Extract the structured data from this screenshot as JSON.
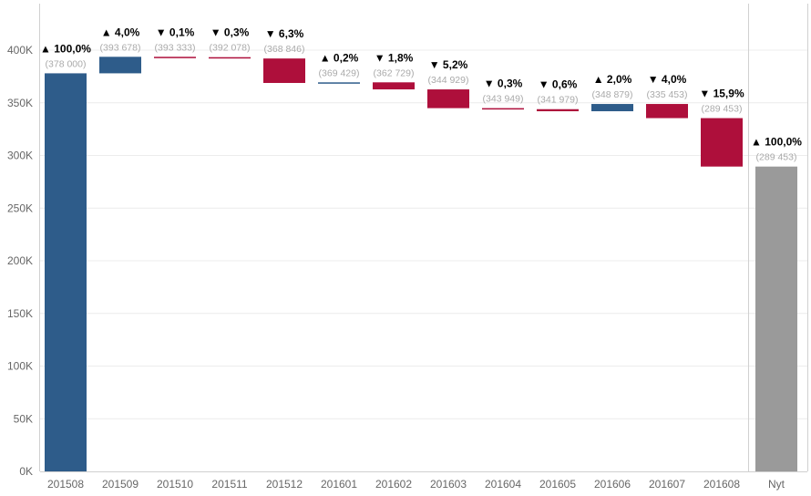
{
  "chart_data": {
    "type": "bar",
    "variant": "waterfall",
    "categories": [
      "201508",
      "201509",
      "201510",
      "201511",
      "201512",
      "201601",
      "201602",
      "201603",
      "201604",
      "201605",
      "201606",
      "201607",
      "201608",
      "Nyt"
    ],
    "bars": [
      {
        "category": "201508",
        "start": 0,
        "end": 378000,
        "kind": "total",
        "pct_label": "▲ 100,0%",
        "value_label": "(378 000)"
      },
      {
        "category": "201509",
        "start": 378000,
        "end": 393678,
        "kind": "increase",
        "pct_label": "▲ 4,0%",
        "value_label": "(393 678)"
      },
      {
        "category": "201510",
        "start": 393678,
        "end": 393333,
        "kind": "decrease",
        "pct_label": "▼ 0,1%",
        "value_label": "(393 333)"
      },
      {
        "category": "201511",
        "start": 393333,
        "end": 392078,
        "kind": "decrease",
        "pct_label": "▼ 0,3%",
        "value_label": "(392 078)"
      },
      {
        "category": "201512",
        "start": 392078,
        "end": 368846,
        "kind": "decrease",
        "pct_label": "▼ 6,3%",
        "value_label": "(368 846)"
      },
      {
        "category": "201601",
        "start": 368846,
        "end": 369429,
        "kind": "increase",
        "pct_label": "▲ 0,2%",
        "value_label": "(369 429)"
      },
      {
        "category": "201602",
        "start": 369429,
        "end": 362729,
        "kind": "decrease",
        "pct_label": "▼ 1,8%",
        "value_label": "(362 729)"
      },
      {
        "category": "201603",
        "start": 362729,
        "end": 344929,
        "kind": "decrease",
        "pct_label": "▼ 5,2%",
        "value_label": "(344 929)"
      },
      {
        "category": "201604",
        "start": 344929,
        "end": 343949,
        "kind": "decrease",
        "pct_label": "▼ 0,3%",
        "value_label": "(343 949)"
      },
      {
        "category": "201605",
        "start": 343949,
        "end": 341979,
        "kind": "decrease",
        "pct_label": "▼ 0,6%",
        "value_label": "(341 979)"
      },
      {
        "category": "201606",
        "start": 341979,
        "end": 348879,
        "kind": "increase",
        "pct_label": "▲ 2,0%",
        "value_label": "(348 879)"
      },
      {
        "category": "201607",
        "start": 348879,
        "end": 335453,
        "kind": "decrease",
        "pct_label": "▼ 4,0%",
        "value_label": "(335 453)"
      },
      {
        "category": "201608",
        "start": 335453,
        "end": 289453,
        "kind": "decrease",
        "pct_label": "▼ 15,9%",
        "value_label": "(289 453)"
      },
      {
        "category": "Nyt",
        "start": 0,
        "end": 289453,
        "kind": "final",
        "pct_label": "▲ 100,0%",
        "value_label": "(289 453)"
      }
    ],
    "y_ticks": [
      0,
      50000,
      100000,
      150000,
      200000,
      250000,
      300000,
      350000,
      400000
    ],
    "y_tick_labels": [
      "0K",
      "50K",
      "100K",
      "150K",
      "200K",
      "250K",
      "300K",
      "350K",
      "400K"
    ],
    "ylim": [
      0,
      420000
    ],
    "grid": true,
    "colors": {
      "increase": "#2e5c8a",
      "decrease": "#ae0f3b",
      "total": "#2e5c8a",
      "final": "#9a9a9a",
      "grid": "#ececec",
      "axis": "#d0d0d0"
    },
    "title": "",
    "xlabel": "",
    "ylabel": ""
  }
}
